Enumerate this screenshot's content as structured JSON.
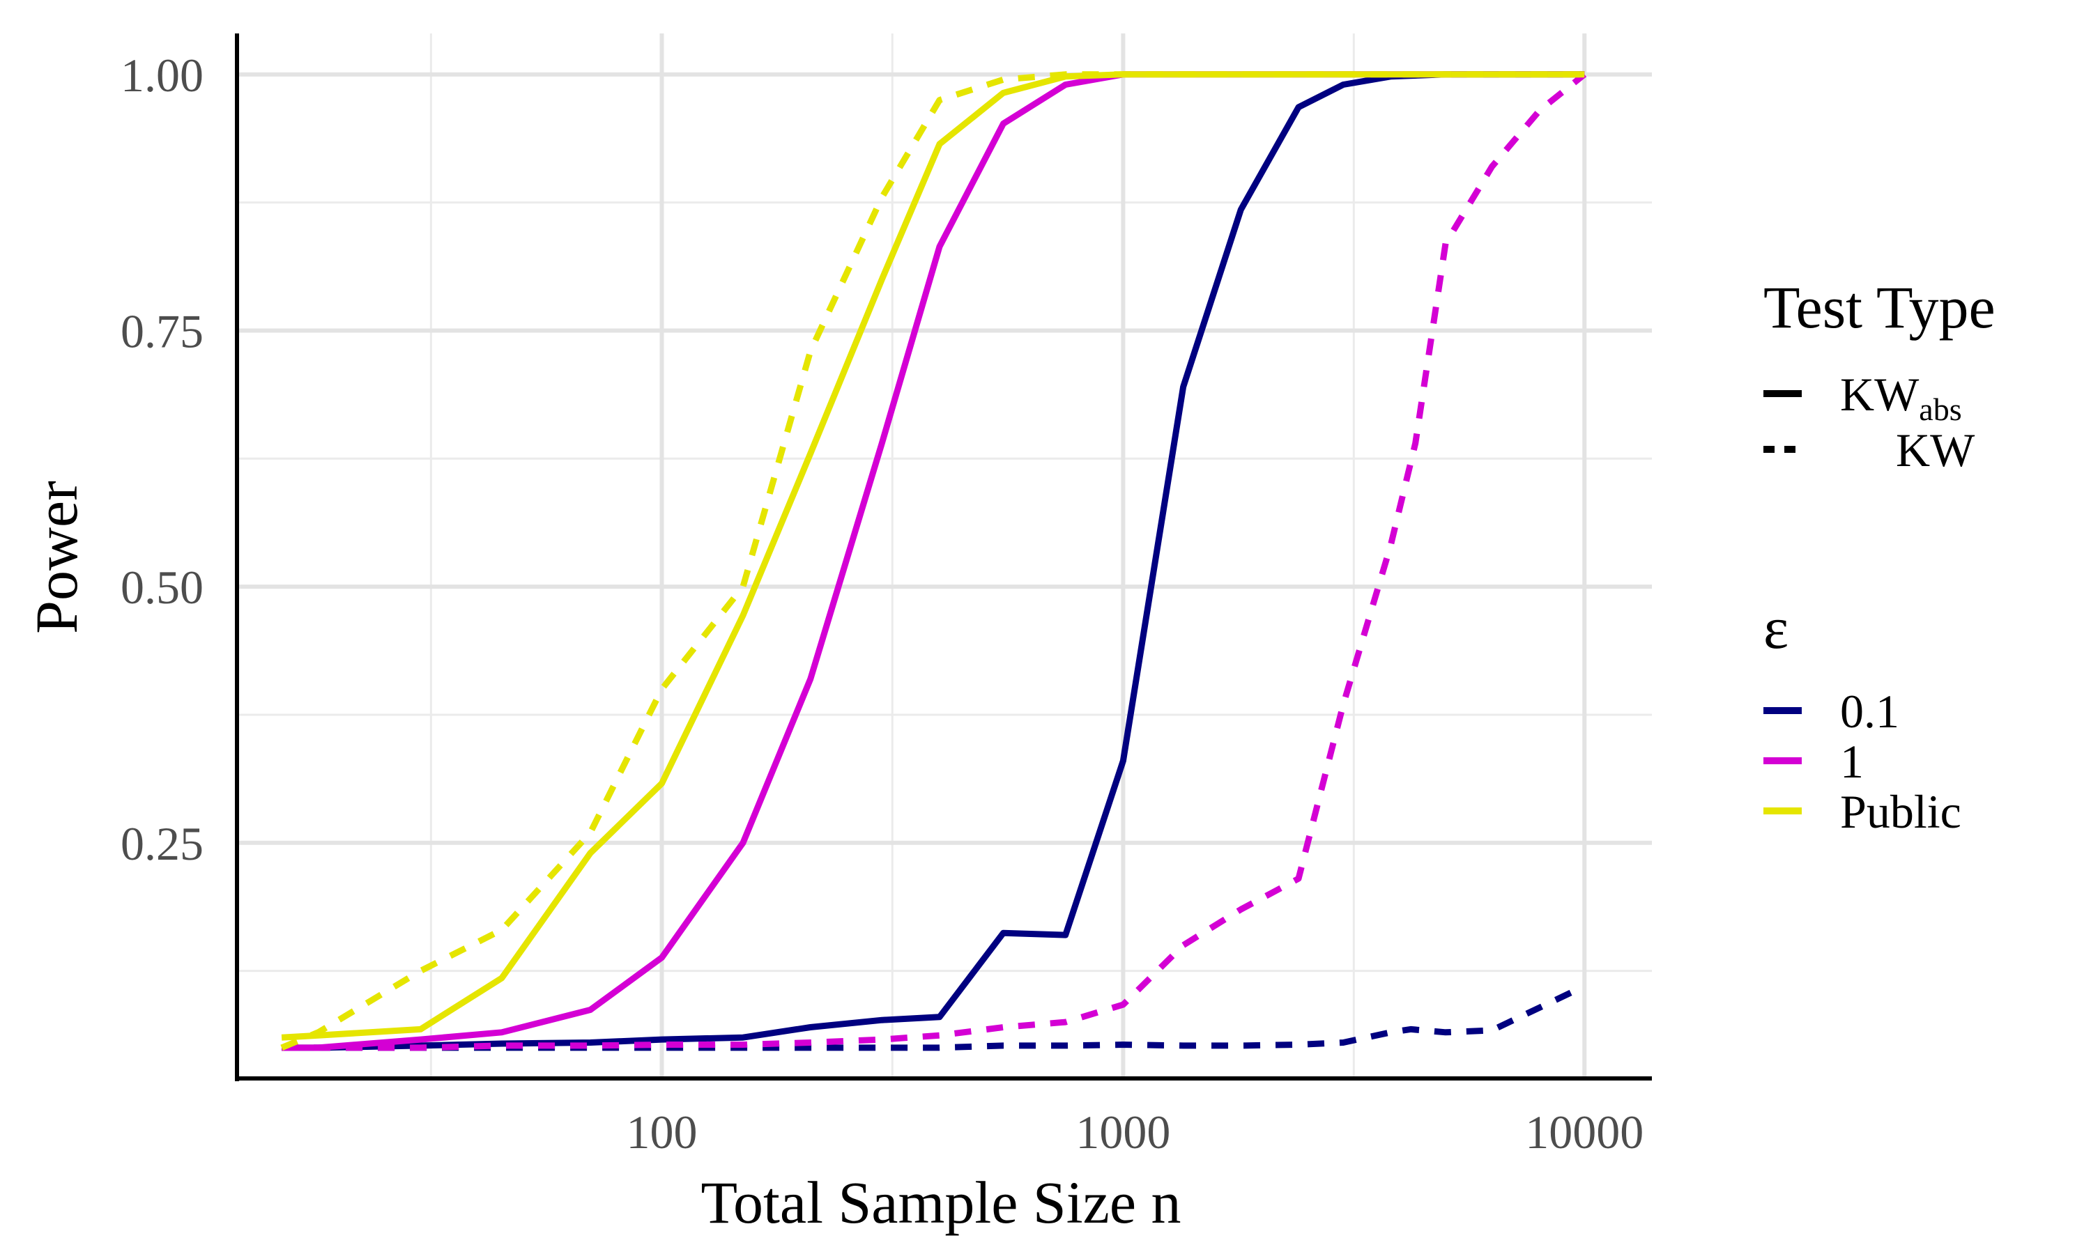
{
  "chart_data": {
    "type": "line",
    "xlabel": "Total Sample Size n",
    "ylabel": "Power",
    "x_scale": "log10",
    "xlim": [
      12,
      14000
    ],
    "ylim": [
      0.02,
      1.04
    ],
    "x_ticks": [
      100,
      1000,
      10000
    ],
    "x_tick_labels": [
      "100",
      "1000",
      "10000"
    ],
    "x_minor_ticks": [
      31.6,
      316,
      3162
    ],
    "y_ticks": [
      0.25,
      0.5,
      0.75,
      1.0
    ],
    "y_tick_labels": [
      "0.25",
      "0.50",
      "0.75",
      "1.00"
    ],
    "y_minor_ticks": [
      0.125,
      0.375,
      0.625,
      0.875
    ],
    "grid": true,
    "legend_position": "right",
    "legend": {
      "linetype_title": "Test Type",
      "linetype_entries": [
        {
          "label": "KW",
          "subscript": "abs",
          "dash": "solid"
        },
        {
          "label": "KW",
          "subscript": "",
          "dash": "dashed"
        }
      ],
      "color_title": "ε",
      "color_entries": [
        {
          "label": "0.1",
          "color": "#000080"
        },
        {
          "label": "1",
          "color": "#d400d4"
        },
        {
          "label": "Public",
          "color": "#e5e500"
        }
      ]
    },
    "series": [
      {
        "test": "KWabs",
        "epsilon": "0.1",
        "color": "#000080",
        "dash": "solid",
        "x": [
          15,
          18,
          30,
          45,
          70,
          100,
          150,
          210,
          300,
          400,
          550,
          750,
          1000,
          1350,
          1800,
          2400,
          3000,
          3800,
          5000,
          7000,
          10000
        ],
        "y": [
          0.05,
          0.05,
          0.052,
          0.054,
          0.055,
          0.058,
          0.06,
          0.07,
          0.077,
          0.08,
          0.162,
          0.16,
          0.33,
          0.695,
          0.868,
          0.968,
          0.99,
          0.998,
          1.0,
          1.0,
          1.0
        ]
      },
      {
        "test": "KW",
        "epsilon": "0.1",
        "color": "#000080",
        "dash": "dashed",
        "x": [
          15,
          18,
          30,
          45,
          70,
          100,
          150,
          210,
          300,
          400,
          550,
          750,
          1000,
          1350,
          1800,
          2400,
          3000,
          3800,
          4200,
          5000,
          6300,
          10000
        ],
        "y": [
          0.05,
          0.05,
          0.05,
          0.05,
          0.05,
          0.05,
          0.05,
          0.05,
          0.05,
          0.05,
          0.052,
          0.052,
          0.053,
          0.052,
          0.052,
          0.053,
          0.055,
          0.065,
          0.068,
          0.065,
          0.067,
          0.11
        ]
      },
      {
        "test": "KWabs",
        "epsilon": "1",
        "color": "#d400d4",
        "dash": "solid",
        "x": [
          15,
          18,
          30,
          45,
          70,
          100,
          150,
          210,
          300,
          400,
          550,
          750,
          1000,
          1350,
          1800,
          2400,
          3000,
          3800,
          5000,
          7000,
          10000
        ],
        "y": [
          0.05,
          0.05,
          0.058,
          0.065,
          0.087,
          0.138,
          0.25,
          0.41,
          0.64,
          0.832,
          0.952,
          0.99,
          1.0,
          1.0,
          1.0,
          1.0,
          1.0,
          1.0,
          1.0,
          1.0,
          1.0
        ]
      },
      {
        "test": "KW",
        "epsilon": "1",
        "color": "#d400d4",
        "dash": "dashed",
        "x": [
          15,
          18,
          30,
          45,
          70,
          100,
          150,
          210,
          300,
          400,
          550,
          750,
          1000,
          1350,
          1800,
          2400,
          3000,
          3800,
          4300,
          5000,
          6300,
          8000,
          10000
        ],
        "y": [
          0.05,
          0.05,
          0.05,
          0.052,
          0.052,
          0.053,
          0.053,
          0.055,
          0.058,
          0.062,
          0.07,
          0.075,
          0.092,
          0.15,
          0.185,
          0.215,
          0.385,
          0.54,
          0.64,
          0.835,
          0.91,
          0.965,
          1.0
        ]
      },
      {
        "test": "KWabs",
        "epsilon": "Public",
        "color": "#e5e500",
        "dash": "solid",
        "x": [
          15,
          18,
          30,
          45,
          70,
          100,
          150,
          210,
          300,
          400,
          550,
          750,
          1000,
          1350,
          1800,
          2400,
          3000,
          3800,
          5000,
          7000,
          10000
        ],
        "y": [
          0.06,
          0.062,
          0.068,
          0.118,
          0.24,
          0.308,
          0.472,
          0.63,
          0.8,
          0.932,
          0.982,
          0.998,
          1.0,
          1.0,
          1.0,
          1.0,
          1.0,
          1.0,
          1.0,
          1.0,
          1.0
        ]
      },
      {
        "test": "KW",
        "epsilon": "Public",
        "color": "#e5e500",
        "dash": "dashed",
        "x": [
          15,
          18,
          30,
          45,
          70,
          100,
          150,
          210,
          300,
          400,
          550,
          750,
          1000,
          1350,
          1800,
          2400,
          3000,
          3800,
          5000,
          7000,
          10000
        ],
        "y": [
          0.05,
          0.065,
          0.125,
          0.165,
          0.26,
          0.4,
          0.5,
          0.73,
          0.88,
          0.975,
          0.995,
          1.0,
          1.0,
          1.0,
          1.0,
          1.0,
          1.0,
          1.0,
          1.0,
          1.0,
          1.0
        ]
      }
    ]
  }
}
